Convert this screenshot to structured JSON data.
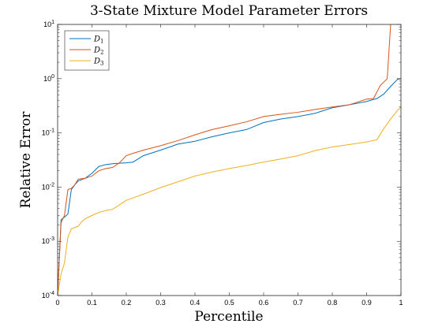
{
  "chart_data": {
    "type": "line",
    "title": "3-State Mixture Model Parameter Errors",
    "xlabel": "Percentile",
    "ylabel": "Relative Error",
    "xlim": [
      0,
      1
    ],
    "ylim": [
      0.0001,
      10
    ],
    "yscale": "log",
    "grid": false,
    "legend_position": "top-left",
    "x_ticks": [
      "0",
      "0.1",
      "0.2",
      "0.3",
      "0.4",
      "0.5",
      "0.6",
      "0.7",
      "0.8",
      "0.9",
      "1"
    ],
    "x_tick_values": [
      0,
      0.1,
      0.2,
      0.3,
      0.4,
      0.5,
      0.6,
      0.7,
      0.8,
      0.9,
      1
    ],
    "y_ticks": [
      {
        "value": 0.0001,
        "base": "10",
        "exp": "-4"
      },
      {
        "value": 0.001,
        "base": "10",
        "exp": "-3"
      },
      {
        "value": 0.01,
        "base": "10",
        "exp": "-2"
      },
      {
        "value": 0.1,
        "base": "10",
        "exp": "-1"
      },
      {
        "value": 1,
        "base": "10",
        "exp": "0"
      },
      {
        "value": 10,
        "base": "10",
        "exp": "1"
      }
    ],
    "series": [
      {
        "name": "D1",
        "label_main": "D",
        "label_sub": "1",
        "color": "#0072BD",
        "x": [
          0,
          0.01,
          0.02,
          0.03,
          0.04,
          0.05,
          0.06,
          0.08,
          0.1,
          0.12,
          0.14,
          0.16,
          0.18,
          0.2,
          0.22,
          0.25,
          0.3,
          0.35,
          0.4,
          0.45,
          0.5,
          0.55,
          0.6,
          0.65,
          0.7,
          0.75,
          0.8,
          0.85,
          0.9,
          0.93,
          0.95,
          0.97,
          0.99,
          1
        ],
        "y": [
          0.0001,
          0.0025,
          0.0028,
          0.0032,
          0.009,
          0.011,
          0.013,
          0.0145,
          0.018,
          0.024,
          0.026,
          0.027,
          0.0275,
          0.028,
          0.029,
          0.038,
          0.048,
          0.062,
          0.07,
          0.085,
          0.1,
          0.115,
          0.155,
          0.18,
          0.2,
          0.23,
          0.29,
          0.33,
          0.38,
          0.43,
          0.52,
          0.72,
          0.97,
          1.0
        ]
      },
      {
        "name": "D2",
        "label_main": "D",
        "label_sub": "2",
        "color": "#D95319",
        "x": [
          0,
          0.01,
          0.02,
          0.03,
          0.04,
          0.05,
          0.06,
          0.08,
          0.1,
          0.12,
          0.14,
          0.16,
          0.18,
          0.2,
          0.22,
          0.25,
          0.3,
          0.35,
          0.4,
          0.45,
          0.5,
          0.55,
          0.6,
          0.65,
          0.7,
          0.75,
          0.8,
          0.85,
          0.9,
          0.92,
          0.94,
          0.96,
          0.97
        ],
        "y": [
          0.0001,
          0.0022,
          0.003,
          0.009,
          0.0095,
          0.011,
          0.014,
          0.0145,
          0.016,
          0.02,
          0.022,
          0.023,
          0.028,
          0.038,
          0.042,
          0.048,
          0.058,
          0.072,
          0.092,
          0.115,
          0.135,
          0.16,
          0.2,
          0.22,
          0.24,
          0.27,
          0.3,
          0.33,
          0.42,
          0.43,
          0.75,
          1.0,
          10
        ]
      },
      {
        "name": "D3",
        "label_main": "D",
        "label_sub": "3",
        "color": "#EDB120",
        "x": [
          0,
          0.01,
          0.02,
          0.03,
          0.04,
          0.05,
          0.06,
          0.07,
          0.08,
          0.1,
          0.12,
          0.14,
          0.16,
          0.18,
          0.2,
          0.25,
          0.3,
          0.35,
          0.4,
          0.45,
          0.5,
          0.55,
          0.6,
          0.65,
          0.7,
          0.75,
          0.8,
          0.85,
          0.9,
          0.93,
          0.95,
          0.97,
          0.99,
          1
        ],
        "y": [
          0.0001,
          0.00025,
          0.0004,
          0.0012,
          0.0017,
          0.0018,
          0.0019,
          0.0023,
          0.0026,
          0.003,
          0.0034,
          0.0037,
          0.0039,
          0.0047,
          0.0057,
          0.0074,
          0.0098,
          0.0125,
          0.016,
          0.019,
          0.022,
          0.025,
          0.029,
          0.033,
          0.038,
          0.047,
          0.055,
          0.061,
          0.068,
          0.075,
          0.12,
          0.18,
          0.26,
          0.3
        ]
      }
    ]
  }
}
